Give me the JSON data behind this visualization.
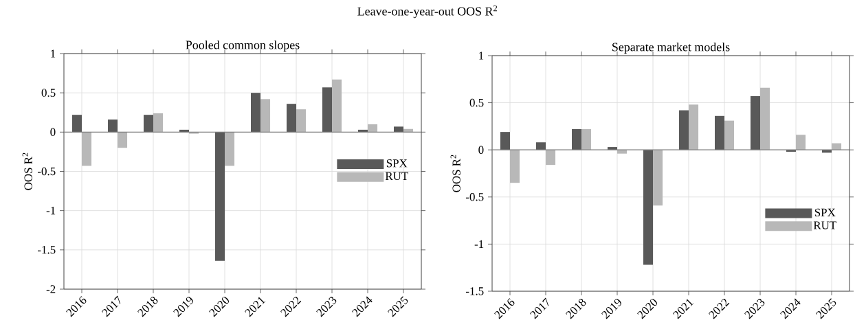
{
  "chart_data": [
    {
      "type": "bar",
      "title": "Pooled common slopes",
      "ylabel": "OOS R$^{2}$",
      "annotations": [
        "Leave-one-year-out OOS R$^{2}$"
      ],
      "categories": [
        "2016",
        "2017",
        "2018",
        "2019",
        "2020",
        "2021",
        "2022",
        "2023",
        "2024",
        "2025"
      ],
      "series": [
        {
          "name": "SPX",
          "color": "#595959",
          "values": [
            0.22,
            0.16,
            0.22,
            0.03,
            -1.64,
            0.5,
            0.36,
            0.57,
            0.03,
            0.07
          ]
        },
        {
          "name": "RUT",
          "color": "#b8b8b8",
          "values": [
            -0.43,
            -0.2,
            0.24,
            -0.02,
            -0.43,
            0.42,
            0.29,
            0.67,
            0.1,
            0.04
          ]
        }
      ],
      "ylim": [
        -2,
        1
      ],
      "yticks": [
        -2,
        -1.5,
        -1,
        -0.5,
        0,
        0.5,
        1
      ],
      "grid": true,
      "legend": "right",
      "ref_lines": [
        {
          "axis": "y",
          "value": 0,
          "color": "#808080"
        }
      ]
    },
    {
      "type": "bar",
      "title": "Separate market models",
      "ylabel": "OOS R$^{2}$",
      "categories": [
        "2016",
        "2017",
        "2018",
        "2019",
        "2020",
        "2021",
        "2022",
        "2023",
        "2024",
        "2025"
      ],
      "series": [
        {
          "name": "SPX",
          "color": "#595959",
          "values": [
            0.19,
            0.08,
            0.22,
            0.03,
            -1.22,
            0.42,
            0.36,
            0.57,
            -0.02,
            -0.03
          ]
        },
        {
          "name": "RUT",
          "color": "#b8b8b8",
          "values": [
            -0.35,
            -0.16,
            0.22,
            -0.04,
            -0.59,
            0.48,
            0.31,
            0.66,
            0.16,
            0.07
          ]
        }
      ],
      "ylim": [
        -1.5,
        1
      ],
      "yticks": [
        -1.5,
        -1,
        -0.5,
        0,
        0.5,
        1
      ],
      "grid": true,
      "legend": "bottom right",
      "ref_lines": [
        {
          "axis": "y",
          "value": 0,
          "color": "#808080"
        }
      ]
    }
  ]
}
